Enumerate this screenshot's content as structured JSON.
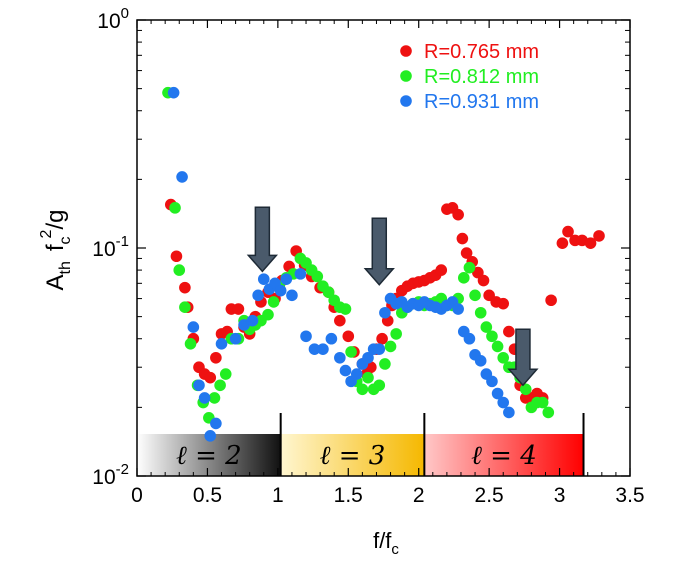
{
  "chart_data": {
    "type": "scatter",
    "xlabel": "f/f",
    "xlabel_sub": "c",
    "ylabel_main": "A",
    "ylabel_sub1": "th",
    "ylabel_f": "f",
    "ylabel_sub2": "c",
    "ylabel_sup": "2",
    "ylabel_tail": "/g",
    "x_scale": "linear",
    "y_scale": "log",
    "xlim": [
      0,
      3.5
    ],
    "ylim": [
      0.01,
      1
    ],
    "x_ticks": [
      "0",
      "0.5",
      "1",
      "1.5",
      "2",
      "2.5",
      "3",
      "3.5"
    ],
    "x_tick_values": [
      0,
      0.5,
      1,
      1.5,
      2,
      2.5,
      3,
      3.5
    ],
    "y_ticks": [
      {
        "value": 0.01,
        "base": "10",
        "exp": "-2"
      },
      {
        "value": 0.1,
        "base": "10",
        "exp": "-1"
      },
      {
        "value": 1,
        "base": "10",
        "exp": "0"
      }
    ],
    "legend_position": "top-right",
    "series": [
      {
        "name": "R=0.765 mm",
        "color": "#ee1111",
        "points": [
          [
            0.24,
            0.155
          ],
          [
            0.28,
            0.092
          ],
          [
            0.34,
            0.067
          ],
          [
            0.36,
            0.055
          ],
          [
            0.4,
            0.04
          ],
          [
            0.44,
            0.03
          ],
          [
            0.48,
            0.028
          ],
          [
            0.52,
            0.027
          ],
          [
            0.56,
            0.033
          ],
          [
            0.6,
            0.042
          ],
          [
            0.64,
            0.043
          ],
          [
            0.67,
            0.054
          ],
          [
            0.72,
            0.054
          ],
          [
            0.76,
            0.045
          ],
          [
            0.8,
            0.042
          ],
          [
            0.84,
            0.05
          ],
          [
            0.88,
            0.058
          ],
          [
            0.93,
            0.064
          ],
          [
            0.98,
            0.06
          ],
          [
            1.03,
            0.072
          ],
          [
            1.08,
            0.083
          ],
          [
            1.13,
            0.097
          ],
          [
            1.19,
            0.084
          ],
          [
            1.24,
            0.075
          ],
          [
            1.3,
            0.067
          ],
          [
            1.36,
            0.064
          ],
          [
            1.4,
            0.055
          ],
          [
            1.44,
            0.048
          ],
          [
            1.5,
            0.041
          ],
          [
            1.54,
            0.035
          ],
          [
            1.6,
            0.031
          ],
          [
            1.63,
            0.028
          ],
          [
            1.66,
            0.03
          ],
          [
            1.7,
            0.036
          ],
          [
            1.74,
            0.04
          ],
          [
            1.78,
            0.048
          ],
          [
            1.81,
            0.056
          ],
          [
            1.84,
            0.06
          ],
          [
            1.88,
            0.065
          ],
          [
            1.92,
            0.068
          ],
          [
            1.96,
            0.07
          ],
          [
            2.0,
            0.071
          ],
          [
            2.04,
            0.072
          ],
          [
            2.08,
            0.074
          ],
          [
            2.12,
            0.076
          ],
          [
            2.16,
            0.08
          ],
          [
            2.2,
            0.148
          ],
          [
            2.24,
            0.15
          ],
          [
            2.28,
            0.14
          ],
          [
            2.31,
            0.11
          ],
          [
            2.34,
            0.095
          ],
          [
            2.38,
            0.087
          ],
          [
            2.42,
            0.078
          ],
          [
            2.46,
            0.072
          ],
          [
            2.5,
            0.062
          ],
          [
            2.55,
            0.058
          ],
          [
            2.6,
            0.057
          ],
          [
            2.64,
            0.043
          ],
          [
            2.68,
            0.036
          ],
          [
            2.72,
            0.025
          ],
          [
            2.76,
            0.022
          ],
          [
            2.8,
            0.022
          ],
          [
            2.84,
            0.023
          ],
          [
            2.88,
            0.022
          ],
          [
            2.94,
            0.059
          ],
          [
            3.02,
            0.105
          ],
          [
            3.06,
            0.118
          ],
          [
            3.11,
            0.108
          ],
          [
            3.16,
            0.108
          ],
          [
            3.22,
            0.105
          ],
          [
            3.28,
            0.113
          ]
        ]
      },
      {
        "name": "R=0.812 mm",
        "color": "#22ee22",
        "points": [
          [
            0.22,
            0.48
          ],
          [
            0.27,
            0.15
          ],
          [
            0.3,
            0.08
          ],
          [
            0.34,
            0.055
          ],
          [
            0.38,
            0.038
          ],
          [
            0.43,
            0.025
          ],
          [
            0.47,
            0.021
          ],
          [
            0.51,
            0.018
          ],
          [
            0.55,
            0.022
          ],
          [
            0.59,
            0.025
          ],
          [
            0.63,
            0.028
          ],
          [
            0.67,
            0.04
          ],
          [
            0.72,
            0.04
          ],
          [
            0.76,
            0.048
          ],
          [
            0.8,
            0.044
          ],
          [
            0.84,
            0.046
          ],
          [
            0.88,
            0.048
          ],
          [
            0.93,
            0.051
          ],
          [
            0.97,
            0.058
          ],
          [
            1.01,
            0.068
          ],
          [
            1.06,
            0.074
          ],
          [
            1.11,
            0.077
          ],
          [
            1.16,
            0.09
          ],
          [
            1.2,
            0.086
          ],
          [
            1.24,
            0.08
          ],
          [
            1.28,
            0.075
          ],
          [
            1.32,
            0.068
          ],
          [
            1.36,
            0.064
          ],
          [
            1.4,
            0.059
          ],
          [
            1.44,
            0.055
          ],
          [
            1.48,
            0.054
          ],
          [
            1.52,
            0.035
          ],
          [
            1.56,
            0.026
          ],
          [
            1.6,
            0.024
          ],
          [
            1.64,
            0.027
          ],
          [
            1.68,
            0.024
          ],
          [
            1.72,
            0.025
          ],
          [
            1.76,
            0.031
          ],
          [
            1.8,
            0.037
          ],
          [
            1.84,
            0.042
          ],
          [
            1.88,
            0.052
          ],
          [
            1.92,
            0.055
          ],
          [
            1.96,
            0.057
          ],
          [
            2.0,
            0.058
          ],
          [
            2.04,
            0.056
          ],
          [
            2.08,
            0.057
          ],
          [
            2.12,
            0.058
          ],
          [
            2.16,
            0.06
          ],
          [
            2.2,
            0.056
          ],
          [
            2.24,
            0.056
          ],
          [
            2.28,
            0.06
          ],
          [
            2.32,
            0.074
          ],
          [
            2.36,
            0.082
          ],
          [
            2.4,
            0.062
          ],
          [
            2.44,
            0.052
          ],
          [
            2.48,
            0.045
          ],
          [
            2.52,
            0.041
          ],
          [
            2.56,
            0.037
          ],
          [
            2.6,
            0.033
          ],
          [
            2.64,
            0.03
          ],
          [
            2.68,
            0.03
          ],
          [
            2.72,
            0.027
          ],
          [
            2.76,
            0.024
          ],
          [
            2.8,
            0.02
          ],
          [
            2.84,
            0.021
          ],
          [
            2.88,
            0.021
          ],
          [
            2.92,
            0.019
          ]
        ]
      },
      {
        "name": "R=0.931 mm",
        "color": "#2277ee",
        "points": [
          [
            0.26,
            0.48
          ],
          [
            0.32,
            0.205
          ],
          [
            0.4,
            0.045
          ],
          [
            0.44,
            0.025
          ],
          [
            0.48,
            0.022
          ],
          [
            0.52,
            0.015
          ],
          [
            0.56,
            0.017
          ],
          [
            0.6,
            0.038
          ],
          [
            0.7,
            0.04
          ],
          [
            0.76,
            0.046
          ],
          [
            0.82,
            0.048
          ],
          [
            0.86,
            0.062
          ],
          [
            0.9,
            0.073
          ],
          [
            0.94,
            0.066
          ],
          [
            0.98,
            0.07
          ],
          [
            1.02,
            0.065
          ],
          [
            1.06,
            0.073
          ],
          [
            1.1,
            0.062
          ],
          [
            1.16,
            0.077
          ],
          [
            1.2,
            0.041
          ],
          [
            1.26,
            0.036
          ],
          [
            1.32,
            0.036
          ],
          [
            1.38,
            0.04
          ],
          [
            1.44,
            0.033
          ],
          [
            1.48,
            0.029
          ],
          [
            1.52,
            0.026
          ],
          [
            1.56,
            0.028
          ],
          [
            1.6,
            0.031
          ],
          [
            1.64,
            0.033
          ],
          [
            1.68,
            0.036
          ],
          [
            1.72,
            0.036
          ],
          [
            1.76,
            0.052
          ],
          [
            1.8,
            0.06
          ],
          [
            1.84,
            0.057
          ],
          [
            1.88,
            0.058
          ],
          [
            1.92,
            0.055
          ],
          [
            1.96,
            0.057
          ],
          [
            2.0,
            0.056
          ],
          [
            2.04,
            0.058
          ],
          [
            2.08,
            0.056
          ],
          [
            2.12,
            0.055
          ],
          [
            2.16,
            0.054
          ],
          [
            2.2,
            0.056
          ],
          [
            2.24,
            0.058
          ],
          [
            2.28,
            0.054
          ],
          [
            2.32,
            0.043
          ],
          [
            2.36,
            0.04
          ],
          [
            2.4,
            0.034
          ],
          [
            2.44,
            0.032
          ],
          [
            2.48,
            0.028
          ],
          [
            2.52,
            0.026
          ],
          [
            2.56,
            0.023
          ],
          [
            2.6,
            0.021
          ],
          [
            2.64,
            0.019
          ]
        ]
      }
    ],
    "arrows": [
      {
        "x": 0.89,
        "y_top": 0.151,
        "y_bottom": 0.079
      },
      {
        "x": 1.72,
        "y_top": 0.135,
        "y_bottom": 0.069
      },
      {
        "x": 2.74,
        "y_top": 0.044,
        "y_bottom": 0.025
      }
    ],
    "bands": [
      {
        "label": "ℓ = 2",
        "x_start": 0.0,
        "x_end": 1.02,
        "color_start": "#ffffff",
        "color_end": "#111111"
      },
      {
        "label": "ℓ = 3",
        "x_start": 1.02,
        "x_end": 2.04,
        "color_start": "#fff6d0",
        "color_end": "#f5b800"
      },
      {
        "label": "ℓ = 4",
        "x_start": 2.04,
        "x_end": 3.17,
        "color_start": "#ffc8c8",
        "color_end": "#ff0000"
      }
    ]
  }
}
